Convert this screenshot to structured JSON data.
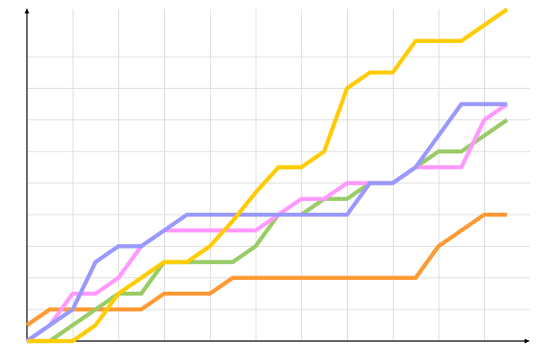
{
  "chart_data": {
    "type": "line",
    "title": "",
    "xlabel": "",
    "ylabel": "",
    "xlim": [
      0,
      11
    ],
    "ylim": [
      0,
      10.5
    ],
    "grid": true,
    "legend": "none",
    "x": [
      0,
      0.5,
      1,
      1.5,
      2,
      2.5,
      3,
      3.5,
      4,
      4.5,
      5,
      5.5,
      6,
      6.5,
      7,
      7.5,
      8,
      8.5,
      9,
      9.5,
      10,
      10.5
    ],
    "series": [
      {
        "color": "#FF9933",
        "values": [
          0.5,
          1,
          1,
          1,
          1,
          1,
          1.5,
          1.5,
          1.5,
          2,
          2,
          2,
          2,
          2,
          2,
          2,
          2,
          2,
          3,
          3.5,
          4,
          4
        ]
      },
      {
        "color": "#99CC66",
        "values": [
          0,
          0,
          0.5,
          1,
          1.5,
          1.5,
          2.5,
          2.5,
          2.5,
          2.5,
          3,
          4,
          4,
          4.5,
          4.5,
          5,
          5,
          5.5,
          6,
          6,
          6.5,
          7
        ]
      },
      {
        "color": "#FF99FF",
        "values": [
          0,
          0.5,
          1.5,
          1.5,
          2,
          3,
          3.5,
          3.5,
          3.5,
          3.5,
          3.5,
          4,
          4.5,
          4.5,
          5,
          5,
          5,
          5.5,
          5.5,
          5.5,
          7,
          7.5
        ]
      },
      {
        "color": "#9999FF",
        "values": [
          0,
          0.5,
          1,
          2.5,
          3,
          3,
          3.5,
          4,
          4,
          4,
          4,
          4,
          4,
          4,
          4,
          5,
          5,
          5.5,
          6.5,
          7.5,
          7.5,
          7.5
        ]
      },
      {
        "color": "#FFCC00",
        "values": [
          0,
          0,
          0,
          0.5,
          1.5,
          2,
          2.5,
          2.5,
          3,
          3.8,
          4.7,
          5.5,
          5.5,
          6,
          8,
          8.5,
          8.5,
          9.5,
          9.5,
          9.5,
          10,
          10.5
        ]
      }
    ]
  }
}
